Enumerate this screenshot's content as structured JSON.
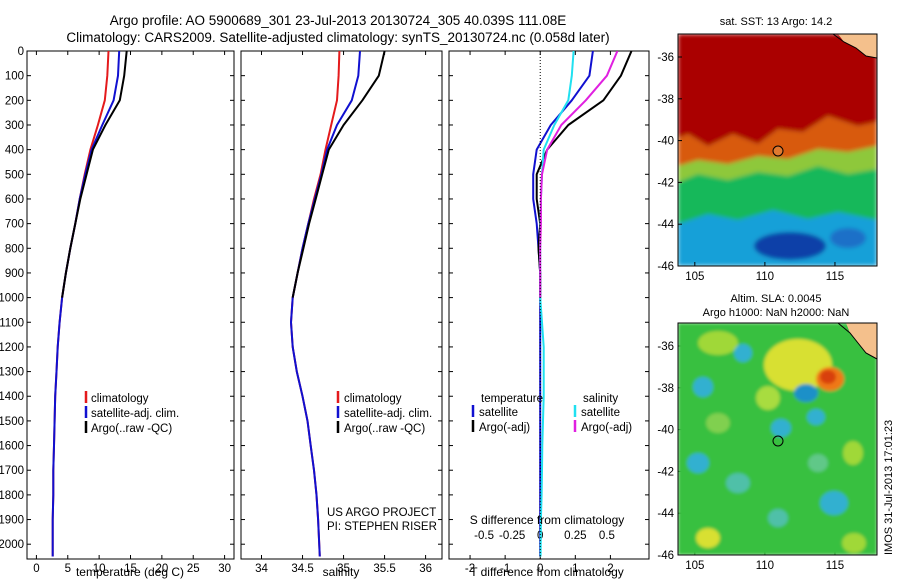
{
  "title": {
    "line1": "Argo profile: AO 5900689_301 23-Jul-2013 20130724_305 40.039S 111.08E",
    "line2": "Climatology: CARS2009. Satellite-adjusted climatology: synTS_20130724.nc (0.058d later)"
  },
  "colors": {
    "climatology": "#e41a1c",
    "satellite": "#1010d0",
    "argo": "#000000",
    "sal_satellite": "#20e0f0",
    "sal_argo": "#e020e0"
  },
  "depth_axis": {
    "ticks": [
      "0",
      "100",
      "200",
      "300",
      "400",
      "500",
      "600",
      "700",
      "800",
      "900",
      "1000",
      "1100",
      "1200",
      "1300",
      "1400",
      "1500",
      "1600",
      "1700",
      "1800",
      "1900",
      "2000"
    ],
    "range": [
      0,
      2060
    ]
  },
  "panels": {
    "temperature": {
      "xlabel": "temperature (deg C)",
      "xrange": [
        -1.5,
        31.5
      ],
      "xticks": [
        "0",
        "5",
        "10",
        "15",
        "20",
        "25",
        "30"
      ],
      "legend": [
        "climatology",
        "satellite-adj. clim.",
        "Argo(..raw -QC)"
      ]
    },
    "salinity": {
      "xlabel": "salinity",
      "xrange": [
        33.75,
        36.2
      ],
      "xticks": [
        "34",
        "34.5",
        "35",
        "35.5",
        "36"
      ],
      "legend": [
        "climatology",
        "satellite-adj. clim.",
        "Argo(..raw -QC)"
      ],
      "note1": "US ARGO PROJECT",
      "note2": "PI: STEPHEN RISER"
    },
    "difference": {
      "xlabel": "T difference from climatology",
      "xrange": [
        -2.6,
        3.1
      ],
      "xticks": [
        "-2",
        "-1",
        "0",
        "1",
        "2"
      ],
      "s_label": "S difference from climatology",
      "s_ticks": [
        "-0.5",
        "-0.25",
        "0",
        "0.25",
        "0.5"
      ],
      "legend_temperature": "temperature",
      "legend_salinity": "salinity",
      "legend_items": [
        "satellite",
        "Argo(-adj)",
        "satellite",
        "Argo(-adj)"
      ]
    }
  },
  "maps": {
    "sst": {
      "title": "sat. SST: 13 Argo: 14.2",
      "xticks": [
        "105",
        "110",
        "115"
      ],
      "yticks": [
        "-36",
        "-38",
        "-40",
        "-42",
        "-44",
        "-46"
      ]
    },
    "sla": {
      "title1": "Altim. SLA: 0.0045",
      "title2": "Argo h1000: NaN h2000: NaN",
      "xticks": [
        "105",
        "110",
        "115"
      ],
      "yticks": [
        "-36",
        "-38",
        "-40",
        "-42",
        "-44",
        "-46"
      ]
    }
  },
  "stamp": "IMOS 31-Jul-2013 17:01:23",
  "chart_data": [
    {
      "type": "line",
      "name": "temperature profile",
      "xlabel": "temperature (deg C)",
      "ylim": [
        2060,
        0
      ],
      "xlim": [
        -1.5,
        31.5
      ],
      "series": [
        {
          "name": "climatology",
          "x": [
            11.5,
            11.3,
            10.9,
            9.8,
            8.6,
            7.7,
            6.9,
            6.2,
            5.4,
            4.7,
            4.1,
            3.7,
            3.4,
            3.2,
            3.0,
            2.9,
            2.8,
            2.7,
            2.7,
            2.6,
            2.6
          ],
          "depth": [
            0,
            100,
            200,
            300,
            400,
            500,
            600,
            700,
            800,
            900,
            1000,
            1100,
            1200,
            1300,
            1400,
            1500,
            1600,
            1700,
            1800,
            1900,
            2050
          ]
        },
        {
          "name": "satellite-adj. clim.",
          "x": [
            13.2,
            13.0,
            12.3,
            10.5,
            8.8,
            7.8,
            6.9,
            6.2,
            5.4,
            4.7,
            4.1,
            3.7,
            3.4,
            3.2,
            3.0,
            2.9,
            2.8,
            2.7,
            2.7,
            2.6,
            2.6
          ],
          "depth": [
            0,
            100,
            200,
            300,
            400,
            500,
            600,
            700,
            800,
            900,
            1000,
            1100,
            1200,
            1300,
            1400,
            1500,
            1600,
            1700,
            1800,
            1900,
            2050
          ]
        },
        {
          "name": "Argo(..raw -QC)",
          "x": [
            14.4,
            14.0,
            13.3,
            11.0,
            9.0,
            8.0,
            7.0,
            6.2,
            5.4,
            4.7,
            4.1
          ],
          "depth": [
            0,
            100,
            200,
            300,
            400,
            500,
            600,
            700,
            800,
            900,
            1000
          ]
        }
      ]
    },
    {
      "type": "line",
      "name": "salinity profile",
      "xlabel": "salinity",
      "ylim": [
        2060,
        0
      ],
      "xlim": [
        33.75,
        36.2
      ],
      "series": [
        {
          "name": "climatology",
          "x": [
            34.95,
            34.94,
            34.92,
            34.85,
            34.78,
            34.72,
            34.64,
            34.57,
            34.5,
            34.44,
            34.38,
            34.36,
            34.38,
            34.43,
            34.5,
            34.56,
            34.6,
            34.64,
            34.67,
            34.69,
            34.71
          ],
          "depth": [
            0,
            100,
            200,
            300,
            400,
            500,
            600,
            700,
            800,
            900,
            1000,
            1100,
            1200,
            1300,
            1400,
            1500,
            1600,
            1700,
            1800,
            1900,
            2050
          ]
        },
        {
          "name": "satellite-adj. clim.",
          "x": [
            35.2,
            35.18,
            35.1,
            34.92,
            34.8,
            34.73,
            34.65,
            34.57,
            34.5,
            34.44,
            34.38,
            34.36,
            34.38,
            34.43,
            34.5,
            34.56,
            34.6,
            34.64,
            34.67,
            34.69,
            34.71
          ],
          "depth": [
            0,
            100,
            200,
            300,
            400,
            500,
            600,
            700,
            800,
            900,
            1000,
            1100,
            1200,
            1300,
            1400,
            1500,
            1600,
            1700,
            1800,
            1900,
            2050
          ]
        },
        {
          "name": "Argo(..raw -QC)",
          "x": [
            35.5,
            35.43,
            35.23,
            35.0,
            34.82,
            34.74,
            34.66,
            34.58,
            34.51,
            34.44,
            34.38
          ],
          "depth": [
            0,
            100,
            200,
            300,
            400,
            500,
            600,
            700,
            800,
            900,
            1000
          ]
        }
      ]
    },
    {
      "type": "line",
      "name": "difference from climatology",
      "xlabel": "T difference from climatology",
      "ylim": [
        2060,
        0
      ],
      "xlim": [
        -2.6,
        3.1
      ],
      "series": [
        {
          "name": "temperature satellite",
          "x": [
            1.5,
            1.4,
            0.9,
            0.3,
            -0.1,
            -0.2,
            -0.2,
            -0.1,
            -0.05,
            0,
            0,
            0,
            0,
            0,
            0,
            0,
            0,
            0,
            0,
            0,
            0
          ],
          "depth": [
            0,
            100,
            200,
            300,
            400,
            500,
            600,
            700,
            800,
            900,
            1000,
            1100,
            1200,
            1300,
            1400,
            1500,
            1600,
            1700,
            1800,
            1900,
            2050
          ]
        },
        {
          "name": "temperature Argo(-adj)",
          "x": [
            2.6,
            2.3,
            1.8,
            0.8,
            0.2,
            -0.1,
            -0.1,
            0,
            -0.05,
            0,
            0
          ],
          "depth": [
            0,
            100,
            200,
            300,
            400,
            500,
            600,
            700,
            800,
            900,
            1000
          ]
        },
        {
          "name": "salinity satellite",
          "x": [
            0.95,
            0.9,
            0.8,
            0.4,
            0.1,
            0.05,
            0.02,
            0.01,
            0,
            0,
            0,
            0.05,
            0.1,
            0.1,
            0.1,
            0.08,
            0.06,
            0.05,
            0.04,
            0.02,
            0.01
          ],
          "depth": [
            0,
            100,
            200,
            300,
            400,
            500,
            600,
            700,
            800,
            900,
            1000,
            1100,
            1200,
            1300,
            1400,
            1500,
            1600,
            1700,
            1800,
            1900,
            2050
          ]
        },
        {
          "name": "salinity Argo(-adj)",
          "x": [
            2.2,
            1.9,
            1.3,
            0.6,
            0.2,
            0.05,
            0.02,
            0.02,
            0,
            0,
            0
          ],
          "depth": [
            0,
            100,
            200,
            300,
            400,
            500,
            600,
            700,
            800,
            900,
            1000
          ]
        }
      ]
    }
  ]
}
